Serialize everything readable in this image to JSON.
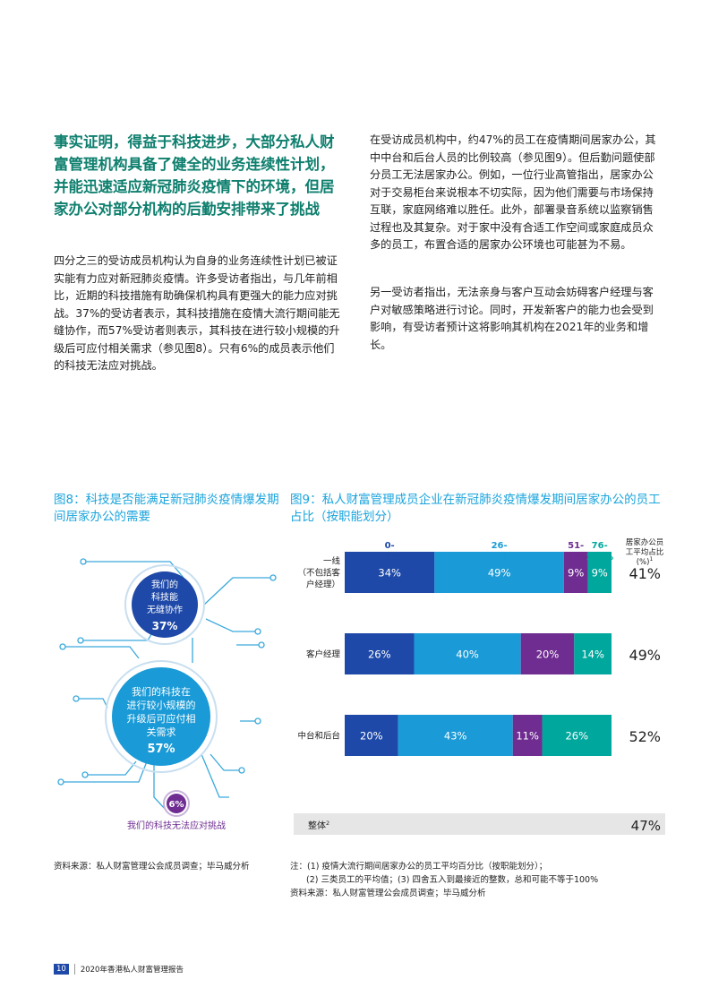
{
  "heading": "事实证明，得益于科技进步，大部分私人财富管理机构具备了健全的业务连续性计划，并能迅速适应新冠肺炎疫情下的环境，但居家办公对部分机构的后勤安排带来了挑战",
  "left_paragraph": "四分之三的受访成员机构认为自身的业务连续性计划已被证实能有力应对新冠肺炎疫情。许多受访者指出，与几年前相比，近期的科技措施有助确保机构具有更强大的能力应对挑战。37%的受访者表示，其科技措施在疫情大流行期间能无缝协作，而57%受访者则表示，其科技在进行较小规模的升级后可应付相关需求（参见图8）。只有6%的成员表示他们的科技无法应对挑战。",
  "right_paragraph_1": "在受访成员机构中，约47%的员工在疫情期间居家办公，其中中台和后台人员的比例较高（参见图9）。但后勤问题使部分员工无法居家办公。例如，一位行业高管指出，居家办公对于交易柜台来说根本不切实际，因为他们需要与市场保持互联，家庭网络难以胜任。此外，部署录音系统以监察销售过程也及其复杂。对于家中没有合适工作空间或家庭成员众多的员工，布置合适的居家办公环境也可能甚为不易。",
  "right_paragraph_2": "另一受访者指出，无法亲身与客户互动会妨碍客户经理与客户对敏感策略进行讨论。同时，开发新客户的能力也会受到影响，有受访者预计这将影响其机构在2021年的业务和增长。",
  "fig8": {
    "title": "图8：科技是否能满足新冠肺炎疫情爆发期间居家办公的需要",
    "items": [
      {
        "label": "我们的科技能无缝协作",
        "value": "37%"
      },
      {
        "label": "我们的科技在进行较小规模的升级后可应付相关需求",
        "value": "57%"
      },
      {
        "label": "我们的科技无法应对挑战",
        "value": "6%"
      }
    ],
    "source": "资料来源：私人财富管理公会成员调查；毕马威分析"
  },
  "fig9": {
    "title": "图9：私人财富管理成员企业在新冠肺炎疫情爆发期间居家办公的员工占比（按职能划分）",
    "avg_header": "居家办公员工平均占比（%）",
    "avg_header_sup": "1",
    "total_label": "整体",
    "total_label_sup": "2",
    "total_value": "47%",
    "notes": [
      "注：(1) 疫情大流行期间居家办公的员工平均百分比（按职能划分）；",
      "(2) 三类员工的平均值；(3) 四舍五入到最接近的整数，总和可能不等于100%",
      "资料来源：私人财富管理公会成员调查；毕马威分析"
    ]
  },
  "chart_data": {
    "type": "bar",
    "orientation": "horizontal",
    "stacked": true,
    "categories": [
      "一线（不包括客户经理）",
      "客户经理",
      "中台和后台"
    ],
    "series": [
      {
        "name": "0-25%",
        "values": [
          34,
          26,
          20
        ],
        "color": "#1e49a8"
      },
      {
        "name": "26-50%",
        "values": [
          49,
          40,
          43
        ],
        "color": "#1a9ad6"
      },
      {
        "name": "51-75%",
        "values": [
          9,
          20,
          11
        ],
        "color": "#6f2c91"
      },
      {
        "name": "76-100%",
        "values": [
          9,
          14,
          26
        ],
        "color": "#00a79d"
      }
    ],
    "averages": [
      41,
      49,
      52
    ],
    "average_labels": [
      "41%",
      "49%",
      "52%"
    ]
  },
  "footer": {
    "page": "10",
    "title": "2020年香港私人财富管理报告"
  }
}
